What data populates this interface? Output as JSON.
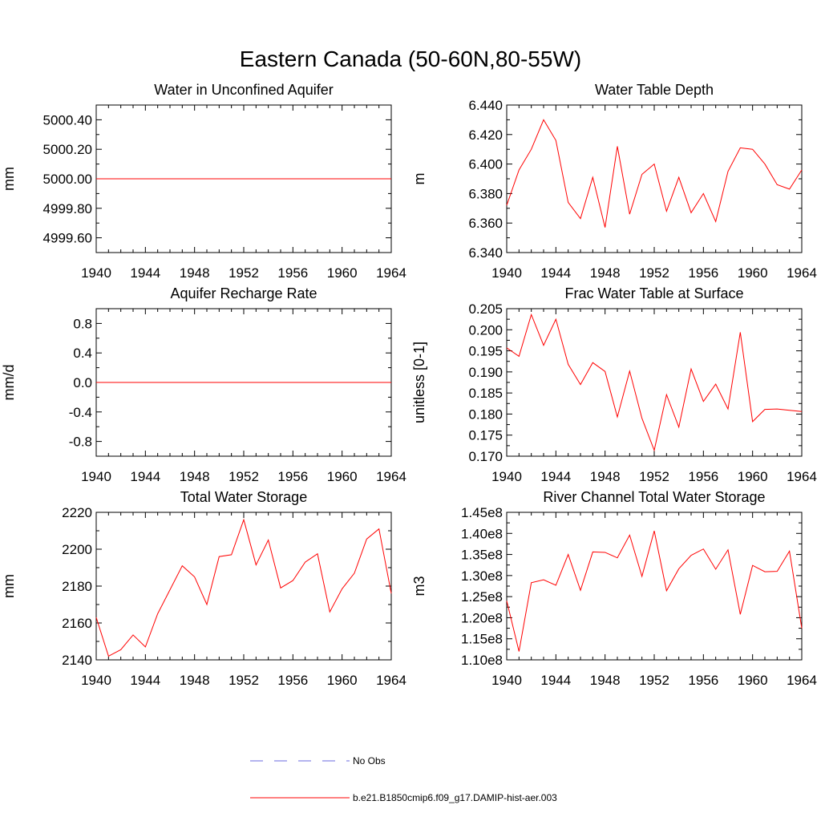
{
  "figure": {
    "title": "Eastern Canada (50-60N,80-55W)",
    "line_color": "#ff0000",
    "obs_color": "#6a6adf"
  },
  "legend": {
    "obs_label": "No Obs",
    "model_label": "b.e21.B1850cmip6.f09_g17.DAMIP-hist-aer.003"
  },
  "chart_data": [
    {
      "type": "line",
      "title": "Water in Unconfined Aquifer",
      "ylabel": "mm",
      "xlim": [
        1940,
        1964
      ],
      "xticks": [
        1940,
        1944,
        1948,
        1952,
        1956,
        1960,
        1964
      ],
      "ylim": [
        4999.5,
        5000.5
      ],
      "yticks": [
        4999.6,
        4999.8,
        5000.0,
        5000.2,
        5000.4
      ],
      "ytick_labels": [
        "4999.60",
        "4999.80",
        "5000.00",
        "5000.20",
        "5000.40"
      ],
      "x": [
        1940,
        1941,
        1942,
        1943,
        1944,
        1945,
        1946,
        1947,
        1948,
        1949,
        1950,
        1951,
        1952,
        1953,
        1954,
        1955,
        1956,
        1957,
        1958,
        1959,
        1960,
        1961,
        1962,
        1963,
        1964
      ],
      "series": [
        {
          "values": [
            5000,
            5000,
            5000,
            5000,
            5000,
            5000,
            5000,
            5000,
            5000,
            5000,
            5000,
            5000,
            5000,
            5000,
            5000,
            5000,
            5000,
            5000,
            5000,
            5000,
            5000,
            5000,
            5000,
            5000,
            5000
          ]
        }
      ]
    },
    {
      "type": "line",
      "title": "Water Table Depth",
      "ylabel": "m",
      "xlim": [
        1940,
        1964
      ],
      "xticks": [
        1940,
        1944,
        1948,
        1952,
        1956,
        1960,
        1964
      ],
      "ylim": [
        6.34,
        6.44
      ],
      "yticks": [
        6.34,
        6.36,
        6.38,
        6.4,
        6.42,
        6.44
      ],
      "ytick_labels": [
        "6.340",
        "6.360",
        "6.380",
        "6.400",
        "6.420",
        "6.440"
      ],
      "x": [
        1940,
        1941,
        1942,
        1943,
        1944,
        1945,
        1946,
        1947,
        1948,
        1949,
        1950,
        1951,
        1952,
        1953,
        1954,
        1955,
        1956,
        1957,
        1958,
        1959,
        1960,
        1961,
        1962,
        1963,
        1964
      ],
      "series": [
        {
          "values": [
            6.372,
            6.396,
            6.41,
            6.43,
            6.416,
            6.374,
            6.363,
            6.391,
            6.357,
            6.412,
            6.366,
            6.393,
            6.4,
            6.368,
            6.391,
            6.367,
            6.38,
            6.361,
            6.395,
            6.411,
            6.41,
            6.4,
            6.386,
            6.383,
            6.396
          ]
        }
      ]
    },
    {
      "type": "line",
      "title": "Aquifer Recharge Rate",
      "ylabel": "mm/d",
      "xlim": [
        1940,
        1964
      ],
      "xticks": [
        1940,
        1944,
        1948,
        1952,
        1956,
        1960,
        1964
      ],
      "ylim": [
        -1.0,
        1.0
      ],
      "yticks": [
        -0.8,
        -0.4,
        0.0,
        0.4,
        0.8
      ],
      "ytick_labels": [
        "-0.8",
        "-0.4",
        "0.0",
        "0.4",
        "0.8"
      ],
      "x": [
        1940,
        1941,
        1942,
        1943,
        1944,
        1945,
        1946,
        1947,
        1948,
        1949,
        1950,
        1951,
        1952,
        1953,
        1954,
        1955,
        1956,
        1957,
        1958,
        1959,
        1960,
        1961,
        1962,
        1963,
        1964
      ],
      "series": [
        {
          "values": [
            0,
            0,
            0,
            0,
            0,
            0,
            0,
            0,
            0,
            0,
            0,
            0,
            0,
            0,
            0,
            0,
            0,
            0,
            0,
            0,
            0,
            0,
            0,
            0,
            0
          ]
        }
      ]
    },
    {
      "type": "line",
      "title": "Frac Water Table at Surface",
      "ylabel": "unitless [0-1]",
      "xlim": [
        1940,
        1964
      ],
      "xticks": [
        1940,
        1944,
        1948,
        1952,
        1956,
        1960,
        1964
      ],
      "ylim": [
        0.17,
        0.205
      ],
      "yticks": [
        0.17,
        0.175,
        0.18,
        0.185,
        0.19,
        0.195,
        0.2,
        0.205
      ],
      "ytick_labels": [
        "0.170",
        "0.175",
        "0.180",
        "0.185",
        "0.190",
        "0.195",
        "0.200",
        "0.205"
      ],
      "x": [
        1940,
        1941,
        1942,
        1943,
        1944,
        1945,
        1946,
        1947,
        1948,
        1949,
        1950,
        1951,
        1952,
        1953,
        1954,
        1955,
        1956,
        1957,
        1958,
        1959,
        1960,
        1961,
        1962,
        1963,
        1964
      ],
      "series": [
        {
          "values": [
            0.1957,
            0.1937,
            0.2036,
            0.1963,
            0.2025,
            0.1918,
            0.187,
            0.1922,
            0.1901,
            0.1793,
            0.1902,
            0.179,
            0.1714,
            0.1846,
            0.1769,
            0.1907,
            0.183,
            0.1871,
            0.1812,
            0.1994,
            0.1782,
            0.1811,
            0.1812,
            0.1809,
            0.1806
          ]
        }
      ]
    },
    {
      "type": "line",
      "title": "Total Water Storage",
      "ylabel": "mm",
      "xlim": [
        1940,
        1964
      ],
      "xticks": [
        1940,
        1944,
        1948,
        1952,
        1956,
        1960,
        1964
      ],
      "ylim": [
        2140,
        2220
      ],
      "yticks": [
        2140,
        2160,
        2180,
        2200,
        2220
      ],
      "ytick_labels": [
        "2140",
        "2160",
        "2180",
        "2200",
        "2220"
      ],
      "x": [
        1940,
        1941,
        1942,
        1943,
        1944,
        1945,
        1946,
        1947,
        1948,
        1949,
        1950,
        1951,
        1952,
        1953,
        1954,
        1955,
        1956,
        1957,
        1958,
        1959,
        1960,
        1961,
        1962,
        1963,
        1964
      ],
      "series": [
        {
          "values": [
            2163,
            2142,
            2145.5,
            2153.5,
            2147,
            2165,
            2178,
            2191,
            2185,
            2170,
            2196,
            2197,
            2216,
            2191.5,
            2205,
            2179,
            2183,
            2193,
            2197.5,
            2166,
            2178.5,
            2187,
            2205.5,
            2211,
            2176
          ]
        }
      ]
    },
    {
      "type": "line",
      "title": "River Channel Total Water Storage",
      "ylabel": "m3",
      "xlim": [
        1940,
        1964
      ],
      "xticks": [
        1940,
        1944,
        1948,
        1952,
        1956,
        1960,
        1964
      ],
      "ylim": [
        110000000,
        145000000
      ],
      "yticks": [
        110000000,
        115000000,
        120000000,
        125000000,
        130000000,
        135000000,
        140000000,
        145000000
      ],
      "ytick_labels": [
        "1.10e8",
        "1.15e8",
        "1.20e8",
        "1.25e8",
        "1.30e8",
        "1.35e8",
        "1.40e8",
        "1.45e8"
      ],
      "x": [
        1940,
        1941,
        1942,
        1943,
        1944,
        1945,
        1946,
        1947,
        1948,
        1949,
        1950,
        1951,
        1952,
        1953,
        1954,
        1955,
        1956,
        1957,
        1958,
        1959,
        1960,
        1961,
        1962,
        1963,
        1964
      ],
      "series": [
        {
          "values": [
            124000000,
            112000000,
            128300000,
            129000000,
            127700000,
            135000000,
            126500000,
            135600000,
            135500000,
            134200000,
            139600000,
            129800000,
            140600000,
            126400000,
            131600000,
            134800000,
            136300000,
            131500000,
            136100000,
            120800000,
            132400000,
            130900000,
            131000000,
            135800000,
            117500000
          ]
        }
      ]
    }
  ]
}
